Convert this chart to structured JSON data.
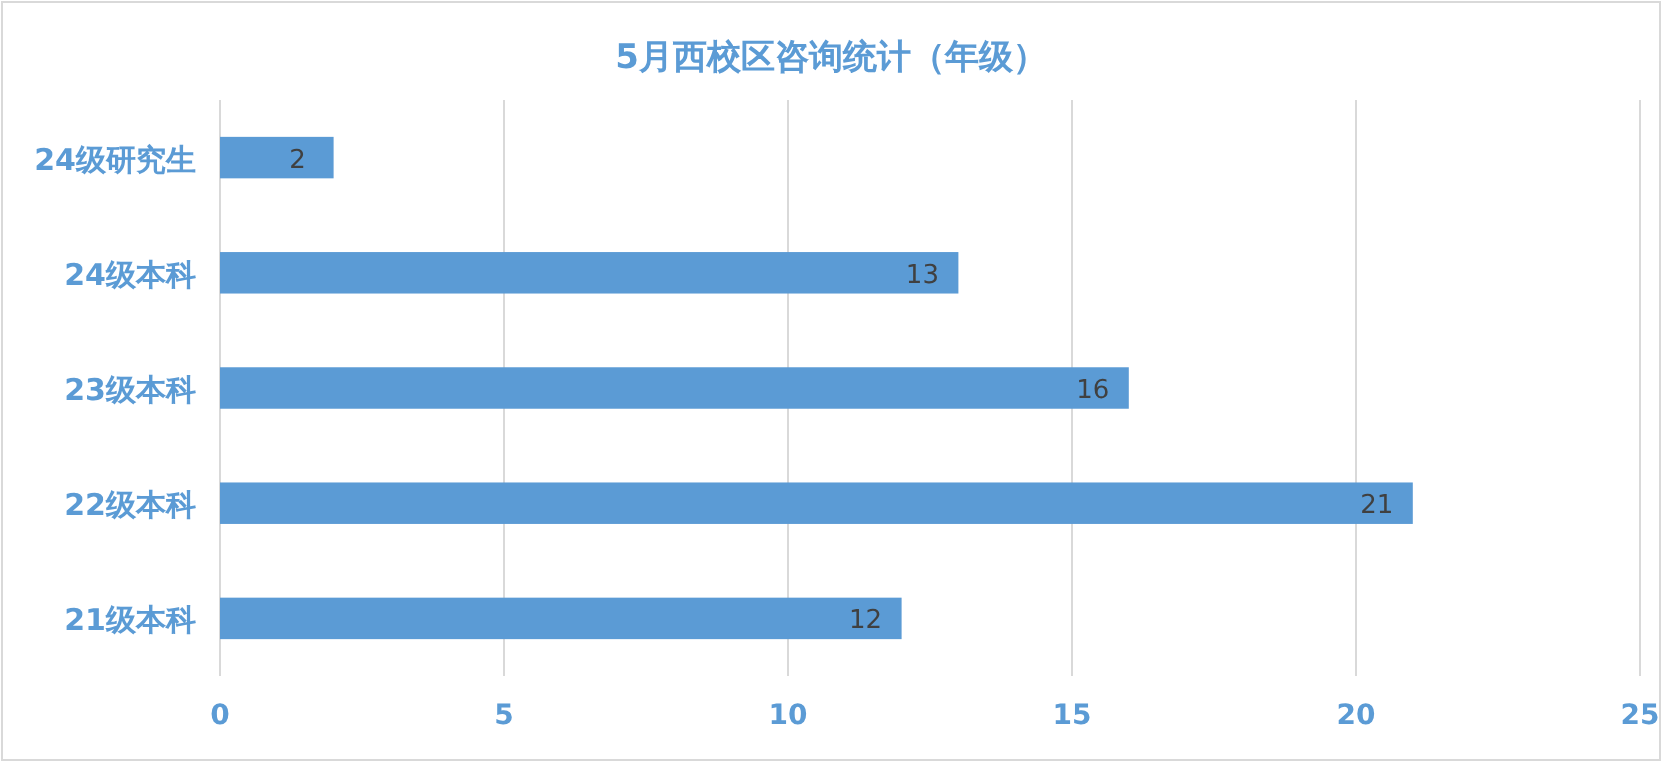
{
  "chart_data": {
    "type": "bar",
    "orientation": "horizontal",
    "title": "5月西校区咨询统计（年级）",
    "categories": [
      "24级研究生",
      "24级本科",
      "23级本科",
      "22级本科",
      "21级本科"
    ],
    "values": [
      2,
      13,
      16,
      21,
      12
    ],
    "color": "#5b9bd5",
    "xlim": [
      0,
      25
    ],
    "xticks": [
      0,
      5,
      10,
      15,
      20,
      25
    ],
    "grid": "x",
    "data_labels": true
  }
}
